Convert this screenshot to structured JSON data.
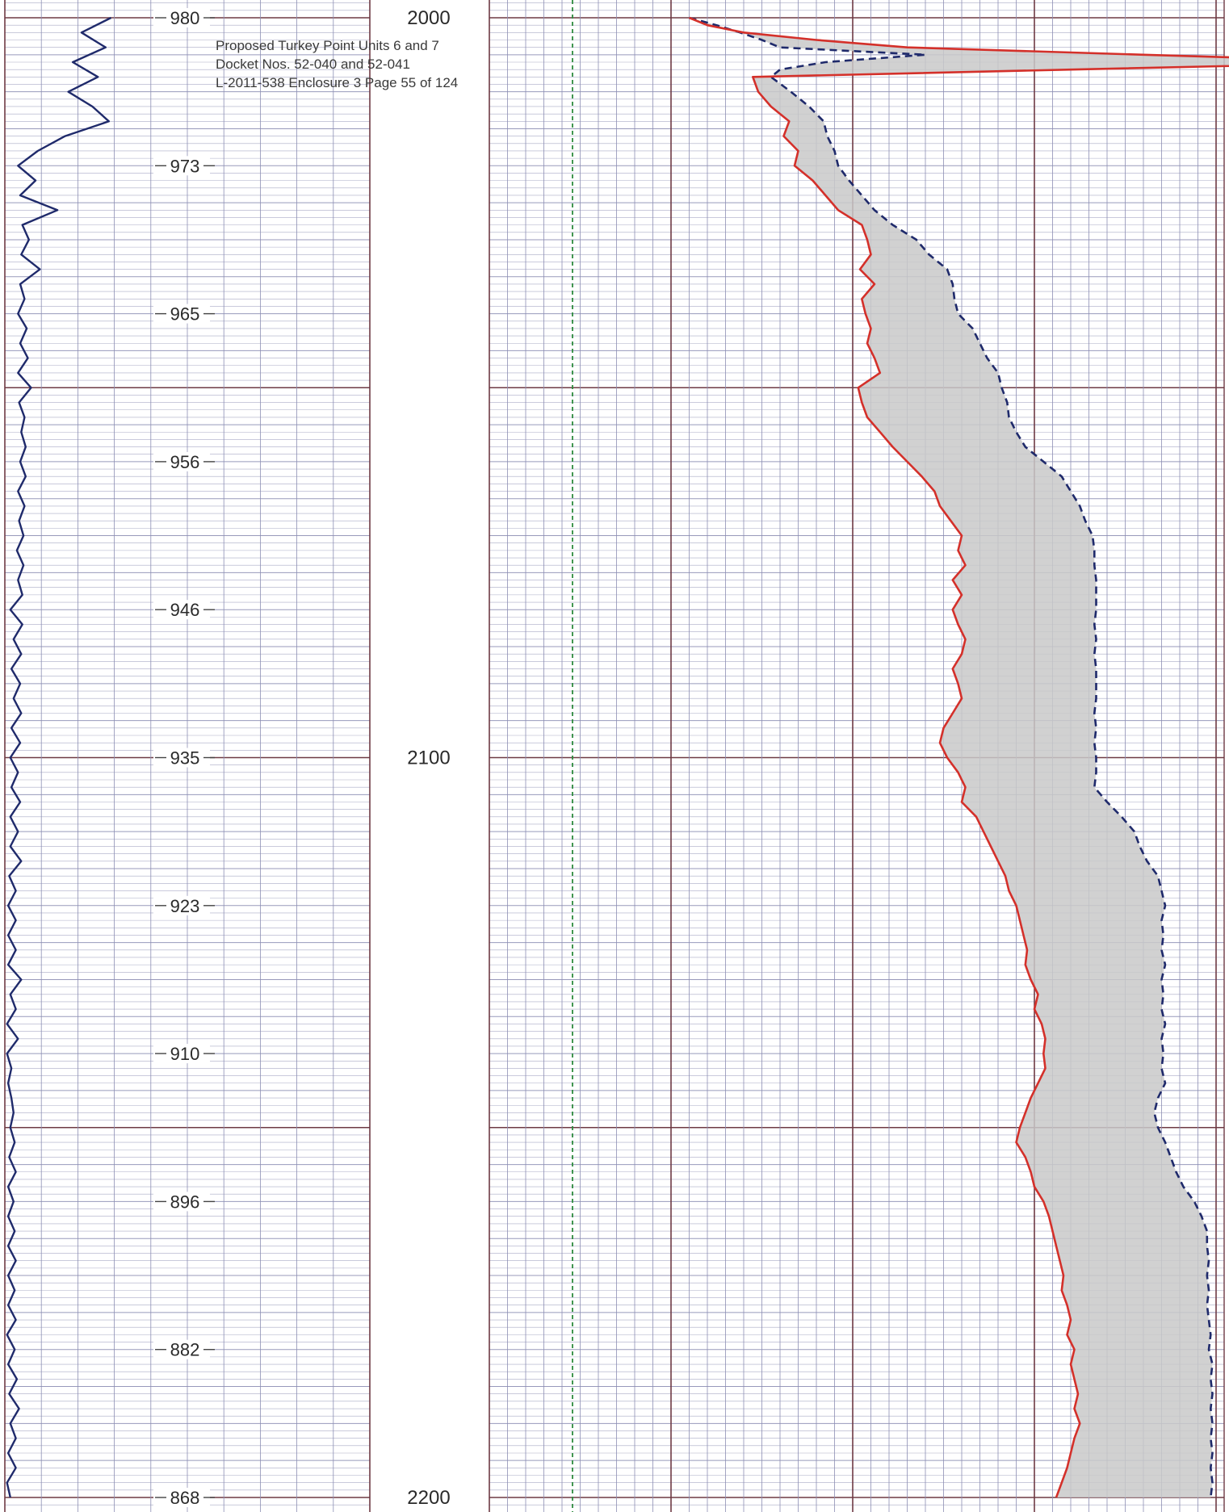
{
  "stamp": {
    "line1": "Proposed Turkey Point Units 6 and 7",
    "line2": "Docket Nos. 52-040 and 52-041",
    "line3": "L-2011-538 Enclosure 3 Page 55 of 124"
  },
  "colors": {
    "grid_minor": "#8d8fb4",
    "grid_major": "#6e3a44",
    "left_curve": "#1f2a6b",
    "solid_curve": "#d4302a",
    "dashed_curve": "#1f2a6b",
    "fill": "#c9c9c9",
    "reference_line": "#2e8b3e"
  },
  "chart_data": {
    "type": "line",
    "depth_scale": {
      "start": 2000,
      "end": 2200,
      "labels": [
        "2000",
        "2100",
        "2200"
      ]
    },
    "left_track": {
      "labels": [
        "980",
        "973",
        "965",
        "956",
        "946",
        "935",
        "923",
        "910",
        "896",
        "882",
        "868"
      ],
      "curve": {
        "depth": [
          2000,
          2002,
          2004,
          2006,
          2008,
          2010,
          2012,
          2014,
          2016,
          2018,
          2020,
          2022,
          2024,
          2026,
          2028,
          2030,
          2032,
          2034,
          2036,
          2038,
          2040,
          2042,
          2044,
          2046,
          2048,
          2050,
          2052,
          2054,
          2056,
          2058,
          2060,
          2062,
          2064,
          2066,
          2068,
          2070,
          2072,
          2074,
          2076,
          2078,
          2080,
          2082,
          2084,
          2086,
          2088,
          2090,
          2092,
          2094,
          2096,
          2098,
          2100,
          2102,
          2104,
          2106,
          2108,
          2110,
          2112,
          2114,
          2116,
          2118,
          2120,
          2122,
          2124,
          2126,
          2128,
          2130,
          2132,
          2134,
          2136,
          2138,
          2140,
          2142,
          2144,
          2146,
          2148,
          2150,
          2152,
          2154,
          2156,
          2158,
          2160,
          2162,
          2164,
          2166,
          2168,
          2170,
          2172,
          2174,
          2176,
          2178,
          2180,
          2182,
          2184,
          2186,
          2188,
          2190,
          2192,
          2194,
          2196,
          2198,
          2200
        ],
        "value": [
          0.97,
          0.7,
          0.92,
          0.62,
          0.85,
          0.58,
          0.8,
          0.95,
          0.55,
          0.3,
          0.12,
          0.28,
          0.14,
          0.48,
          0.16,
          0.22,
          0.15,
          0.32,
          0.14,
          0.18,
          0.12,
          0.2,
          0.14,
          0.21,
          0.12,
          0.24,
          0.13,
          0.18,
          0.15,
          0.19,
          0.14,
          0.19,
          0.12,
          0.18,
          0.13,
          0.17,
          0.11,
          0.17,
          0.12,
          0.16,
          0.05,
          0.16,
          0.08,
          0.15,
          0.06,
          0.14,
          0.08,
          0.15,
          0.06,
          0.14,
          0.05,
          0.12,
          0.06,
          0.14,
          0.05,
          0.12,
          0.05,
          0.15,
          0.04,
          0.1,
          0.03,
          0.1,
          0.03,
          0.1,
          0.03,
          0.15,
          0.05,
          0.1,
          0.02,
          0.12,
          0.02,
          0.06,
          0.03,
          0.06,
          0.08,
          0.05,
          0.09,
          0.04,
          0.1,
          0.03,
          0.08,
          0.03,
          0.09,
          0.03,
          0.1,
          0.03,
          0.09,
          0.03,
          0.1,
          0.02,
          0.09,
          0.03,
          0.11,
          0.04,
          0.13,
          0.05,
          0.1,
          0.03,
          0.1,
          0.02,
          0.05
        ]
      }
    },
    "right_track": {
      "reference_line_value": 0.0,
      "series": [
        {
          "style": "solid",
          "depth": [
            2000,
            2001,
            2002,
            2003,
            2004,
            2005,
            2006,
            2007,
            2008,
            2010,
            2012,
            2014,
            2016,
            2018,
            2020,
            2022,
            2024,
            2026,
            2028,
            2030,
            2032,
            2034,
            2036,
            2038,
            2040,
            2042,
            2044,
            2046,
            2048,
            2050,
            2052,
            2054,
            2056,
            2058,
            2060,
            2062,
            2064,
            2066,
            2068,
            2070,
            2072,
            2074,
            2076,
            2078,
            2080,
            2082,
            2084,
            2086,
            2088,
            2090,
            2092,
            2094,
            2096,
            2098,
            2100,
            2102,
            2104,
            2106,
            2108,
            2110,
            2112,
            2114,
            2116,
            2118,
            2120,
            2122,
            2124,
            2126,
            2128,
            2130,
            2132,
            2134,
            2136,
            2138,
            2140,
            2142,
            2144,
            2146,
            2148,
            2150,
            2152,
            2154,
            2156,
            2158,
            2160,
            2162,
            2164,
            2166,
            2168,
            2170,
            2172,
            2174,
            2176,
            2178,
            2180,
            2182,
            2184,
            2186,
            2188,
            2190,
            2192,
            2194,
            2196,
            2198,
            2200
          ],
          "value": [
            1.1,
            1.2,
            1.4,
            1.8,
            2.3,
            3.6,
            5.0,
            3.2,
            1.45,
            1.48,
            1.55,
            1.65,
            1.62,
            1.7,
            1.68,
            1.78,
            1.85,
            1.92,
            2.05,
            2.08,
            2.1,
            2.04,
            2.12,
            2.05,
            2.07,
            2.1,
            2.08,
            2.12,
            2.15,
            2.03,
            2.05,
            2.08,
            2.15,
            2.22,
            2.3,
            2.38,
            2.45,
            2.48,
            2.54,
            2.6,
            2.58,
            2.62,
            2.55,
            2.6,
            2.55,
            2.58,
            2.62,
            2.6,
            2.55,
            2.58,
            2.6,
            2.55,
            2.5,
            2.48,
            2.52,
            2.58,
            2.62,
            2.6,
            2.68,
            2.72,
            2.76,
            2.8,
            2.84,
            2.86,
            2.9,
            2.92,
            2.94,
            2.96,
            2.95,
            2.98,
            3.02,
            3.0,
            3.04,
            3.06,
            3.05,
            3.06,
            3.02,
            2.98,
            2.95,
            2.92,
            2.9,
            2.95,
            2.98,
            3.0,
            3.05,
            3.08,
            3.1,
            3.12,
            3.14,
            3.16,
            3.15,
            3.18,
            3.2,
            3.18,
            3.22,
            3.2,
            3.22,
            3.24,
            3.22,
            3.25,
            3.22,
            3.2,
            3.18,
            3.15,
            3.12
          ]
        },
        {
          "style": "dashed",
          "depth": [
            2000,
            2001,
            2002,
            2003,
            2004,
            2005,
            2006,
            2007,
            2008,
            2010,
            2012,
            2014,
            2016,
            2018,
            2020,
            2022,
            2024,
            2026,
            2028,
            2030,
            2032,
            2034,
            2036,
            2038,
            2040,
            2042,
            2044,
            2046,
            2048,
            2050,
            2052,
            2054,
            2056,
            2058,
            2060,
            2062,
            2064,
            2066,
            2068,
            2070,
            2072,
            2074,
            2076,
            2078,
            2080,
            2082,
            2084,
            2086,
            2088,
            2090,
            2092,
            2094,
            2096,
            2098,
            2100,
            2102,
            2104,
            2106,
            2108,
            2110,
            2112,
            2114,
            2116,
            2118,
            2120,
            2122,
            2124,
            2126,
            2128,
            2130,
            2132,
            2134,
            2136,
            2138,
            2140,
            2142,
            2144,
            2146,
            2148,
            2150,
            2152,
            2154,
            2156,
            2158,
            2160,
            2162,
            2164,
            2166,
            2168,
            2170,
            2172,
            2174,
            2176,
            2178,
            2180,
            2182,
            2184,
            2186,
            2188,
            2190,
            2192,
            2194,
            2196,
            2198,
            2200
          ],
          "value": [
            1.1,
            1.25,
            1.38,
            1.5,
            1.6,
            2.4,
            1.85,
            1.6,
            1.55,
            1.66,
            1.76,
            1.84,
            1.86,
            1.9,
            1.92,
            1.98,
            2.05,
            2.12,
            2.22,
            2.35,
            2.42,
            2.52,
            2.55,
            2.56,
            2.58,
            2.66,
            2.7,
            2.74,
            2.8,
            2.82,
            2.85,
            2.86,
            2.9,
            2.95,
            3.05,
            3.15,
            3.2,
            3.25,
            3.28,
            3.32,
            3.33,
            3.33,
            3.34,
            3.34,
            3.34,
            3.33,
            3.34,
            3.33,
            3.34,
            3.34,
            3.34,
            3.33,
            3.34,
            3.33,
            3.34,
            3.34,
            3.33,
            3.4,
            3.48,
            3.55,
            3.58,
            3.62,
            3.68,
            3.7,
            3.72,
            3.7,
            3.71,
            3.7,
            3.72,
            3.7,
            3.71,
            3.7,
            3.72,
            3.7,
            3.71,
            3.7,
            3.72,
            3.68,
            3.66,
            3.68,
            3.72,
            3.75,
            3.78,
            3.82,
            3.88,
            3.92,
            3.95,
            3.95,
            3.96,
            3.95,
            3.96,
            3.95,
            3.96,
            3.97,
            3.96,
            3.98,
            3.97,
            3.98,
            3.97,
            3.98,
            3.97,
            3.98,
            3.97,
            3.98,
            3.97
          ]
        }
      ]
    }
  }
}
